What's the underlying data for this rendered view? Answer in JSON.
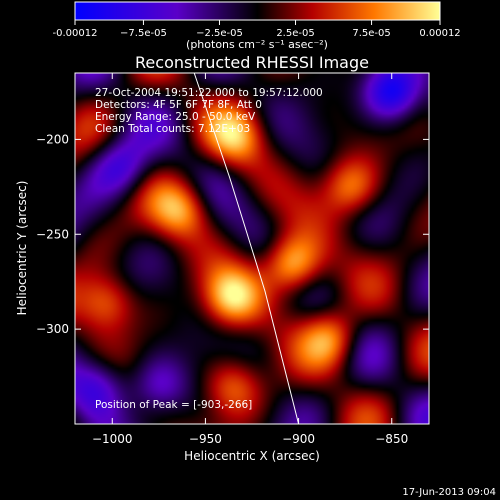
{
  "chart_data": {
    "type": "heatmap",
    "title": "Reconstructed RHESSI Image",
    "xlabel": "Heliocentric X (arcsec)",
    "ylabel": "Heliocentric Y (arcsec)",
    "xlim": [
      -1020,
      -830
    ],
    "ylim": [
      -350,
      -165
    ],
    "x_ticks": [
      -1000,
      -950,
      -900,
      -850
    ],
    "y_ticks": [
      -200,
      -250,
      -300
    ],
    "colorbar": {
      "min": -0.00012,
      "max": 0.00012,
      "tick_labels": [
        "-0.00012",
        "−7.5e-05",
        "−2.5e-05",
        "2.5e-05",
        "7.5e-05",
        "0.00012"
      ],
      "tick_values": [
        -0.00012,
        -7.5e-05,
        -2.5e-05,
        2.5e-05,
        7.5e-05,
        0.00012
      ],
      "unit_label": "(photons cm⁻² s⁻¹ asec⁻²)",
      "colormap": [
        "#0000ff",
        "#5a00c8",
        "#000000",
        "#b40000",
        "#ff7800",
        "#ffff96"
      ]
    },
    "annotations": [
      "27-Oct-2004 19:51:22.000  to 19:57:12.000",
      "Detectors: 4F 5F 6F 7F 8F, Att 0",
      "Energy Range: 25.0 - 50.0 keV",
      "Clean     Total counts: 7.12E+03"
    ],
    "peak_label": "Position of Peak = [-903,-266]",
    "peak_position": [
      -903,
      -266
    ],
    "limb_curve": [
      [
        -956,
        -165
      ],
      [
        -937,
        -220
      ],
      [
        -918,
        -280
      ],
      [
        -900,
        -350
      ]
    ],
    "sources": [
      {
        "x": -903,
        "y": -266,
        "v": 0.00012
      },
      {
        "x": -936,
        "y": -283,
        "v": 0.0001
      },
      {
        "x": -964,
        "y": -237,
        "v": 8.5e-05
      },
      {
        "x": -1003,
        "y": -286,
        "v": 8e-05
      },
      {
        "x": -934,
        "y": -198,
        "v": 8e-05
      },
      {
        "x": -872,
        "y": -225,
        "v": 8.5e-05
      },
      {
        "x": -883,
        "y": -305,
        "v": 8.5e-05
      },
      {
        "x": -935,
        "y": -330,
        "v": 7e-05
      },
      {
        "x": -850,
        "y": -175,
        "v": -0.00012
      },
      {
        "x": -995,
        "y": -215,
        "v": -7e-05
      },
      {
        "x": -1008,
        "y": -330,
        "v": -7e-05
      },
      {
        "x": -975,
        "y": -330,
        "v": -6e-05
      }
    ]
  },
  "footer_timestamp": "17-Jun-2013 09:04"
}
